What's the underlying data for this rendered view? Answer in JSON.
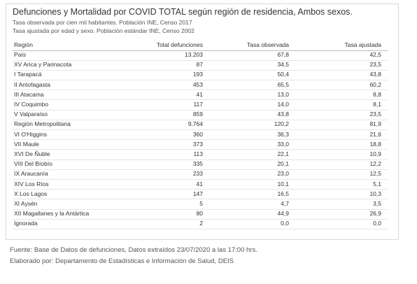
{
  "header": {
    "title": "Defunciones y Mortalidad por COVID TOTAL según región de residencia, Ambos sexos.",
    "subtitles": [
      "Tasa observada por cien mil habitantes. Población INE, Censo 2017",
      "Tasa ajustada por edad y sexo. Población estándar INE, Censo 2002"
    ]
  },
  "table": {
    "columns": [
      "Región",
      "Total defunciones",
      "Tasa observada",
      "Tasa ajustada"
    ],
    "rows": [
      [
        "País",
        "13.203",
        "67,8",
        "42,5"
      ],
      [
        "XV Arica y Parinacota",
        "87",
        "34,5",
        "23,5"
      ],
      [
        "I Tarapacá",
        "193",
        "50,4",
        "43,8"
      ],
      [
        "II Antofagasta",
        "453",
        "65,5",
        "60,2"
      ],
      [
        "III Atacama",
        "41",
        "13,0",
        "8,8"
      ],
      [
        "IV Coquimbo",
        "117",
        "14,0",
        "8,1"
      ],
      [
        "V Valparaíso",
        "859",
        "43,8",
        "23,5"
      ],
      [
        "Región Metropolitana",
        "9.764",
        "120,2",
        "81,9"
      ],
      [
        "VI O'Higgins",
        "360",
        "36,3",
        "21,6"
      ],
      [
        "VII Maule",
        "373",
        "33,0",
        "18,8"
      ],
      [
        "XVI De Ñuble",
        "113",
        "22,1",
        "10,9"
      ],
      [
        "VIII Del Bíobío",
        "335",
        "20,1",
        "12,2"
      ],
      [
        "IX Araucanía",
        "233",
        "23,0",
        "12,5"
      ],
      [
        "XIV Los Ríos",
        "41",
        "10,1",
        "5,1"
      ],
      [
        "X Los Lagos",
        "147",
        "16,5",
        "10,3"
      ],
      [
        "XI Aysén",
        "5",
        "4,7",
        "3,5"
      ],
      [
        "XII Magallanes y la Antártica",
        "80",
        "44,9",
        "26,9"
      ],
      [
        "Ignorada",
        "2",
        "0,0",
        "0,0"
      ]
    ]
  },
  "footer": [
    "Fuente: Base de Datos de defunciones, Datos extraídos 23/07/2020 a las 17:00 hrs.",
    "Elaborado por: Departamento de Estadísticas e Información de Salud, DEIS"
  ]
}
